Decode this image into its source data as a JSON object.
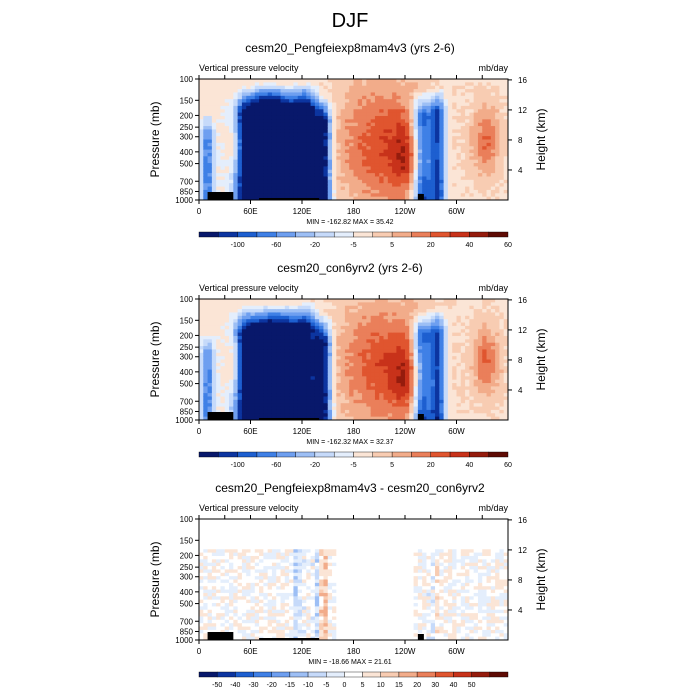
{
  "page": {
    "title": "DJF"
  },
  "colors": {
    "main_palette": [
      "#08186b",
      "#0c35a0",
      "#1d5fd0",
      "#3f80e6",
      "#6e9ff0",
      "#9dbff5",
      "#c6dafa",
      "#e4eefc",
      "#fbe5d6",
      "#f8ccb2",
      "#f2ac8a",
      "#ea7f5a",
      "#e0552f",
      "#c8321a",
      "#951c0d",
      "#5e0b04"
    ],
    "diff_palette": [
      "#08186b",
      "#0c35a0",
      "#1d5fd0",
      "#3f80e6",
      "#6e9ff0",
      "#9dbff5",
      "#c6dafa",
      "#e4eefc",
      "#ffffff",
      "#fbe5d6",
      "#f8ccb2",
      "#f2ac8a",
      "#ea7f5a",
      "#e0552f",
      "#c8321a",
      "#951c0d",
      "#5e0b04"
    ],
    "terrain": "#000000"
  },
  "chart_data": [
    {
      "type": "heatmap",
      "title": "cesm20_Pengfeiexp8mam4v3 (yrs 2-6)",
      "left_string": "Vertical pressure velocity",
      "right_string": "mb/day",
      "ylabel": "Pressure (mb)",
      "ylabel_right": "Height (km)",
      "y_ticks": [
        "100",
        "150",
        "200",
        "250",
        "300",
        "400",
        "500",
        "700",
        "850",
        "1000"
      ],
      "y_ticks_right": [
        "16",
        "12",
        "8",
        "4"
      ],
      "x_ticks": [
        "0",
        "60E",
        "120E",
        "180",
        "120W",
        "60W"
      ],
      "xlim_degE": [
        0,
        345
      ],
      "ylim_mb": [
        1000,
        100
      ],
      "y_scale": "log",
      "stats": "MIN = -162.82  MAX =  35.42",
      "colorbar_labels": [
        "-100",
        "-60",
        "-20",
        "-5",
        "5",
        "20",
        "40",
        "60"
      ],
      "palette": "main_palette",
      "contour_fields": [
        {
          "lon": 55,
          "top_mb": 115,
          "width": 22,
          "value": 0.9
        },
        {
          "lon": 78,
          "top_mb": 105,
          "width": 22,
          "value": 0.95
        },
        {
          "lon": 100,
          "top_mb": 110,
          "width": 22,
          "value": 0.95
        },
        {
          "lon": 125,
          "top_mb": 105,
          "width": 18,
          "value": 1.0
        },
        {
          "lon": 145,
          "top_mb": 135,
          "width": 12,
          "value": 0.9
        },
        {
          "lon": 260,
          "top_mb": 120,
          "width": 14,
          "value": 0.85
        },
        {
          "lon": 278,
          "top_mb": 115,
          "width": 12,
          "value": 0.8
        },
        {
          "lon": 10,
          "top_mb": 180,
          "width": 10,
          "value": 0.55
        }
      ]
    },
    {
      "type": "heatmap",
      "title": "cesm20_con6yrv2 (yrs 2-6)",
      "left_string": "Vertical pressure velocity",
      "right_string": "mb/day",
      "ylabel": "Pressure (mb)",
      "ylabel_right": "Height (km)",
      "y_ticks": [
        "100",
        "150",
        "200",
        "250",
        "300",
        "400",
        "500",
        "700",
        "850",
        "1000"
      ],
      "y_ticks_right": [
        "16",
        "12",
        "8",
        "4"
      ],
      "x_ticks": [
        "0",
        "60E",
        "120E",
        "180",
        "120W",
        "60W"
      ],
      "xlim_degE": [
        0,
        345
      ],
      "ylim_mb": [
        1000,
        100
      ],
      "y_scale": "log",
      "stats": "MIN = -162.32  MAX =  32.37",
      "colorbar_labels": [
        "-100",
        "-60",
        "-20",
        "-5",
        "5",
        "20",
        "40",
        "60"
      ],
      "palette": "main_palette",
      "contour_fields": [
        {
          "lon": 55,
          "top_mb": 115,
          "width": 22,
          "value": 0.9
        },
        {
          "lon": 78,
          "top_mb": 110,
          "width": 22,
          "value": 0.9
        },
        {
          "lon": 100,
          "top_mb": 110,
          "width": 22,
          "value": 0.95
        },
        {
          "lon": 125,
          "top_mb": 105,
          "width": 18,
          "value": 0.95
        },
        {
          "lon": 145,
          "top_mb": 135,
          "width": 12,
          "value": 0.85
        },
        {
          "lon": 260,
          "top_mb": 120,
          "width": 14,
          "value": 0.85
        },
        {
          "lon": 278,
          "top_mb": 115,
          "width": 12,
          "value": 0.8
        },
        {
          "lon": 10,
          "top_mb": 180,
          "width": 10,
          "value": 0.55
        }
      ]
    },
    {
      "type": "heatmap",
      "title": "cesm20_Pengfeiexp8mam4v3 - cesm20_con6yrv2",
      "left_string": "Vertical pressure velocity",
      "right_string": "mb/day",
      "ylabel": "Pressure (mb)",
      "ylabel_right": "Height (km)",
      "y_ticks": [
        "100",
        "150",
        "200",
        "250",
        "300",
        "400",
        "500",
        "700",
        "850",
        "1000"
      ],
      "y_ticks_right": [
        "16",
        "12",
        "8",
        "4"
      ],
      "x_ticks": [
        "0",
        "60E",
        "120E",
        "180",
        "120W",
        "60W"
      ],
      "xlim_degE": [
        0,
        345
      ],
      "ylim_mb": [
        1000,
        100
      ],
      "y_scale": "log",
      "stats": "MIN = -18.66  MAX =  21.61",
      "colorbar_labels": [
        "-50",
        "-40",
        "-30",
        "-20",
        "-15",
        "-10",
        "-5",
        "0",
        "5",
        "10",
        "15",
        "20",
        "30",
        "40",
        "50"
      ],
      "palette": "diff_palette",
      "contour_fields": []
    }
  ]
}
